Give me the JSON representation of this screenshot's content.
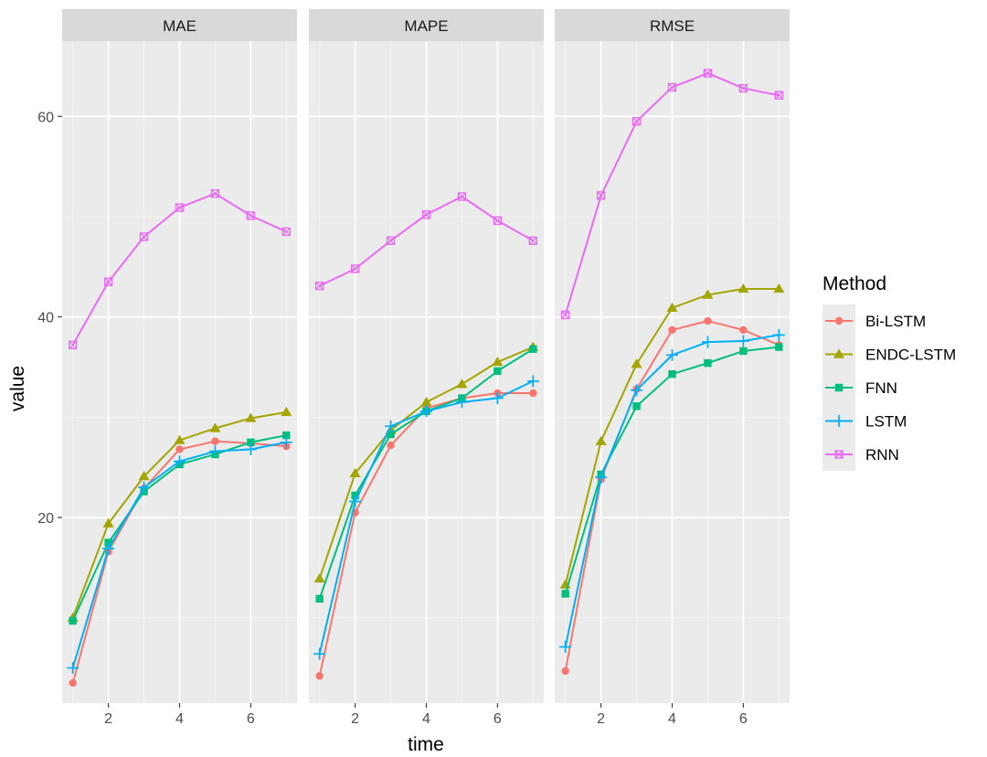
{
  "chart_data": {
    "type": "line",
    "xlabel": "time",
    "ylabel": "value",
    "legend_title": "Method",
    "legend_position": "right",
    "grid": true,
    "xlim": [
      0.7,
      7.3
    ],
    "ylim": [
      1.5,
      67.5
    ],
    "x_ticks": [
      2,
      4,
      6
    ],
    "y_ticks": [
      20,
      40,
      60
    ],
    "x": [
      1,
      2,
      3,
      4,
      5,
      6,
      7
    ],
    "series_styles": [
      {
        "name": "Bi-LSTM",
        "color": "#F8766D",
        "marker": "circle"
      },
      {
        "name": "ENDC-LSTM",
        "color": "#A3A500",
        "marker": "triangle"
      },
      {
        "name": "FNN",
        "color": "#00BF7D",
        "marker": "square"
      },
      {
        "name": "LSTM",
        "color": "#00B0F6",
        "marker": "plus"
      },
      {
        "name": "RNN",
        "color": "#E76BF3",
        "marker": "boxcross"
      }
    ],
    "panels": [
      {
        "title": "MAE",
        "series": [
          {
            "name": "Bi-LSTM",
            "values": [
              3.5,
              16.6,
              22.9,
              26.8,
              27.6,
              27.4,
              27.1
            ]
          },
          {
            "name": "ENDC-LSTM",
            "values": [
              10.0,
              19.4,
              24.1,
              27.7,
              28.9,
              29.9,
              30.5
            ]
          },
          {
            "name": "FNN",
            "values": [
              9.7,
              17.5,
              22.6,
              25.3,
              26.3,
              27.5,
              28.2
            ]
          },
          {
            "name": "LSTM",
            "values": [
              5.0,
              16.9,
              23.0,
              25.6,
              26.6,
              26.8,
              27.5
            ]
          },
          {
            "name": "RNN",
            "values": [
              37.2,
              43.5,
              48.0,
              50.9,
              52.3,
              50.1,
              48.5
            ]
          }
        ]
      },
      {
        "title": "MAPE",
        "series": [
          {
            "name": "Bi-LSTM",
            "values": [
              4.2,
              20.5,
              27.2,
              30.9,
              31.9,
              32.4,
              32.4
            ]
          },
          {
            "name": "ENDC-LSTM",
            "values": [
              13.9,
              24.4,
              28.7,
              31.5,
              33.3,
              35.5,
              37.0
            ]
          },
          {
            "name": "FNN",
            "values": [
              11.9,
              22.2,
              28.3,
              30.6,
              31.9,
              34.6,
              36.8
            ]
          },
          {
            "name": "LSTM",
            "values": [
              6.4,
              21.6,
              29.1,
              30.6,
              31.5,
              31.9,
              33.6
            ]
          },
          {
            "name": "RNN",
            "values": [
              43.1,
              44.8,
              47.6,
              50.2,
              52.0,
              49.6,
              47.6
            ]
          }
        ]
      },
      {
        "title": "RMSE",
        "series": [
          {
            "name": "Bi-LSTM",
            "values": [
              4.7,
              23.8,
              32.8,
              38.7,
              39.6,
              38.7,
              37.2
            ]
          },
          {
            "name": "ENDC-LSTM",
            "values": [
              13.3,
              27.6,
              35.3,
              40.9,
              42.2,
              42.8,
              42.8
            ]
          },
          {
            "name": "FNN",
            "values": [
              12.4,
              24.3,
              31.1,
              34.3,
              35.4,
              36.6,
              37.0
            ]
          },
          {
            "name": "LSTM",
            "values": [
              7.1,
              24.0,
              32.7,
              36.2,
              37.5,
              37.6,
              38.2
            ]
          },
          {
            "name": "RNN",
            "values": [
              40.2,
              52.1,
              59.5,
              62.9,
              64.3,
              62.8,
              62.1
            ]
          }
        ]
      }
    ]
  }
}
